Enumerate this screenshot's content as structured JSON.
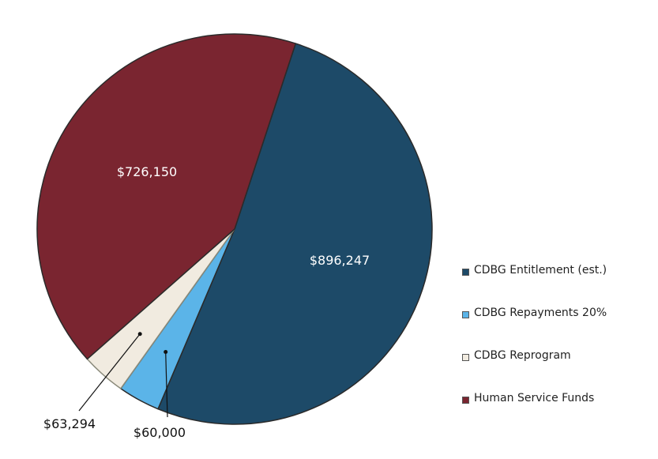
{
  "chart_data": {
    "type": "pie",
    "categories": [
      "CDBG Entitlement (est.)",
      "CDBG Repayments 20%",
      "CDBG Reprogram",
      "Human Service Funds"
    ],
    "values": [
      896247,
      60000,
      63294,
      726150
    ],
    "data_labels": [
      "$896,247",
      "$60,000",
      "$63,294",
      "$726,150"
    ],
    "colors": [
      "#1d4a68",
      "#5bb4e8",
      "#f1ebe0",
      "#7a2530"
    ],
    "legend": {
      "position": "right",
      "entries": [
        "CDBG Entitlement (est.)",
        "CDBG Repayments 20%",
        "CDBG Reprogram",
        "Human Service Funds"
      ]
    }
  }
}
